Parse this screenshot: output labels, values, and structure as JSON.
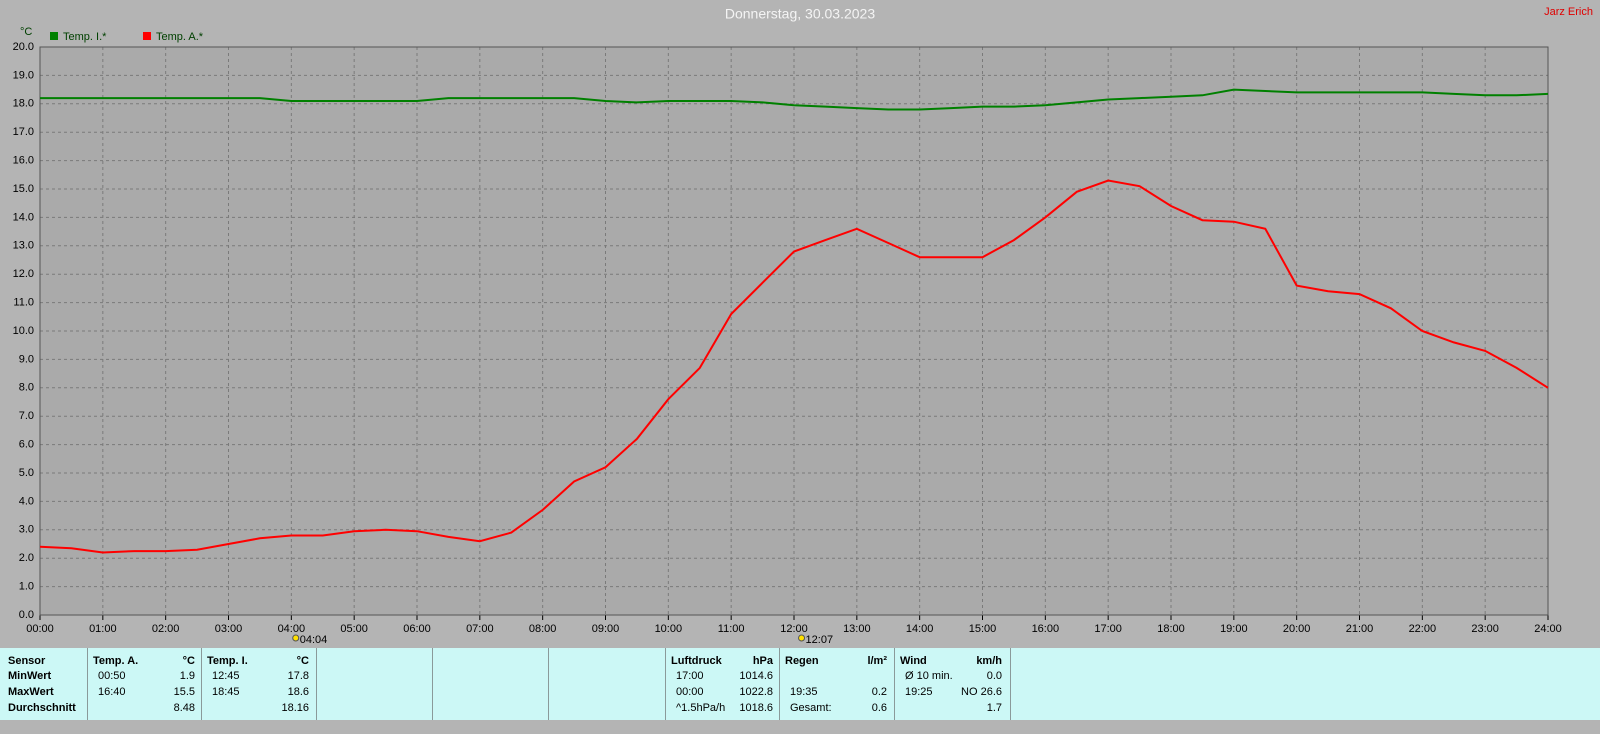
{
  "chart_data": {
    "type": "line",
    "title": "Donnerstag, 30.03.2023",
    "author": "Jarz Erich",
    "y_unit": "°C",
    "x": [
      0,
      0.5,
      1,
      1.5,
      2,
      2.5,
      3,
      3.5,
      4,
      4.5,
      5,
      5.5,
      6,
      6.5,
      7,
      7.5,
      8,
      8.5,
      9,
      9.5,
      10,
      10.5,
      11,
      11.5,
      12,
      12.5,
      13,
      13.5,
      14,
      14.5,
      15,
      15.5,
      16,
      16.5,
      17,
      17.5,
      18,
      18.5,
      19,
      19.5,
      20,
      20.5,
      21,
      21.5,
      22,
      22.5,
      23,
      23.5,
      24
    ],
    "xlim": [
      0,
      24
    ],
    "xticks": [
      {
        "value": 0,
        "label": "00:00"
      },
      {
        "value": 1,
        "label": "01:00"
      },
      {
        "value": 2,
        "label": "02:00"
      },
      {
        "value": 3,
        "label": "03:00"
      },
      {
        "value": 4,
        "label": "04:00"
      },
      {
        "value": 5,
        "label": "05:00"
      },
      {
        "value": 6,
        "label": "06:00"
      },
      {
        "value": 7,
        "label": "07:00"
      },
      {
        "value": 8,
        "label": "08:00"
      },
      {
        "value": 9,
        "label": "09:00"
      },
      {
        "value": 10,
        "label": "10:00"
      },
      {
        "value": 11,
        "label": "11:00"
      },
      {
        "value": 12,
        "label": "12:00"
      },
      {
        "value": 13,
        "label": "13:00"
      },
      {
        "value": 14,
        "label": "14:00"
      },
      {
        "value": 15,
        "label": "15:00"
      },
      {
        "value": 16,
        "label": "16:00"
      },
      {
        "value": 17,
        "label": "17:00"
      },
      {
        "value": 18,
        "label": "18:00"
      },
      {
        "value": 19,
        "label": "19:00"
      },
      {
        "value": 20,
        "label": "20:00"
      },
      {
        "value": 21,
        "label": "21:00"
      },
      {
        "value": 22,
        "label": "22:00"
      },
      {
        "value": 23,
        "label": "23:00"
      },
      {
        "value": 24,
        "label": "24:00"
      }
    ],
    "ylim": [
      0,
      20
    ],
    "yticks": [
      {
        "value": 0,
        "label": "0.0"
      },
      {
        "value": 1,
        "label": "1.0"
      },
      {
        "value": 2,
        "label": "2.0"
      },
      {
        "value": 3,
        "label": "3.0"
      },
      {
        "value": 4,
        "label": "4.0"
      },
      {
        "value": 5,
        "label": "5.0"
      },
      {
        "value": 6,
        "label": "6.0"
      },
      {
        "value": 7,
        "label": "7.0"
      },
      {
        "value": 8,
        "label": "8.0"
      },
      {
        "value": 9,
        "label": "9.0"
      },
      {
        "value": 10,
        "label": "10.0"
      },
      {
        "value": 11,
        "label": "11.0"
      },
      {
        "value": 12,
        "label": "12.0"
      },
      {
        "value": 13,
        "label": "13.0"
      },
      {
        "value": 14,
        "label": "14.0"
      },
      {
        "value": 15,
        "label": "15.0"
      },
      {
        "value": 16,
        "label": "16.0"
      },
      {
        "value": 17,
        "label": "17.0"
      },
      {
        "value": 18,
        "label": "18.0"
      },
      {
        "value": 19,
        "label": "19.0"
      },
      {
        "value": 20,
        "label": "20.0"
      }
    ],
    "grid": true,
    "series": [
      {
        "name": "Temp. I.*",
        "color": "#008000",
        "values": [
          18.2,
          18.2,
          18.2,
          18.2,
          18.2,
          18.2,
          18.2,
          18.2,
          18.1,
          18.1,
          18.1,
          18.1,
          18.1,
          18.2,
          18.2,
          18.2,
          18.2,
          18.2,
          18.1,
          18.05,
          18.1,
          18.1,
          18.1,
          18.05,
          17.95,
          17.9,
          17.85,
          17.8,
          17.8,
          17.85,
          17.9,
          17.9,
          17.95,
          18.05,
          18.15,
          18.2,
          18.25,
          18.3,
          18.5,
          18.45,
          18.4,
          18.4,
          18.4,
          18.4,
          18.4,
          18.35,
          18.3,
          18.3,
          18.35
        ]
      },
      {
        "name": "Temp. A.*",
        "color": "#ff0000",
        "values": [
          2.4,
          2.35,
          2.2,
          2.25,
          2.25,
          2.3,
          2.5,
          2.7,
          2.8,
          2.8,
          2.95,
          3.0,
          2.95,
          2.75,
          2.6,
          2.9,
          3.7,
          4.7,
          5.2,
          6.2,
          7.6,
          8.7,
          10.6,
          11.7,
          12.8,
          13.2,
          13.6,
          13.1,
          12.6,
          12.6,
          12.6,
          13.2,
          14.0,
          14.9,
          15.3,
          15.1,
          14.4,
          13.9,
          13.85,
          13.6,
          11.6,
          11.4,
          11.3,
          10.8,
          10.0,
          9.6,
          9.3,
          8.7,
          8.0
        ]
      }
    ],
    "sun_events": [
      {
        "x": 4.07,
        "label": "04:04"
      },
      {
        "x": 12.12,
        "label": "12:07"
      }
    ]
  },
  "table": {
    "sensor": {
      "header": "Sensor",
      "rows": [
        "MinWert",
        "MaxWert",
        "Durchschnitt"
      ]
    },
    "groups": [
      {
        "header": "Temp. A.",
        "unit": "°C",
        "rows": [
          [
            "00:50",
            "1.9"
          ],
          [
            "16:40",
            "15.5"
          ],
          [
            null,
            "8.48"
          ]
        ]
      },
      {
        "header": "Temp. I.",
        "unit": "°C",
        "rows": [
          [
            "12:45",
            "17.8"
          ],
          [
            "18:45",
            "18.6"
          ],
          [
            null,
            "18.16"
          ]
        ]
      },
      {
        "header": "Luftdruck",
        "unit": "hPa",
        "rows": [
          [
            "17:00",
            "1014.6"
          ],
          [
            "00:00",
            "1022.8"
          ],
          [
            "^1.5hPa/h",
            "1018.6"
          ]
        ]
      },
      {
        "header": "Regen",
        "unit": "l/m²",
        "rows": [
          [
            null,
            null
          ],
          [
            "19:35",
            "0.2"
          ],
          [
            "Gesamt:",
            "0.6"
          ]
        ]
      },
      {
        "header": "Wind",
        "unit": "km/h",
        "rows": [
          [
            "Ø 10 min.",
            "0.0"
          ],
          [
            "19:25",
            "NO 26.6"
          ],
          [
            null,
            "1.7"
          ]
        ]
      }
    ]
  }
}
